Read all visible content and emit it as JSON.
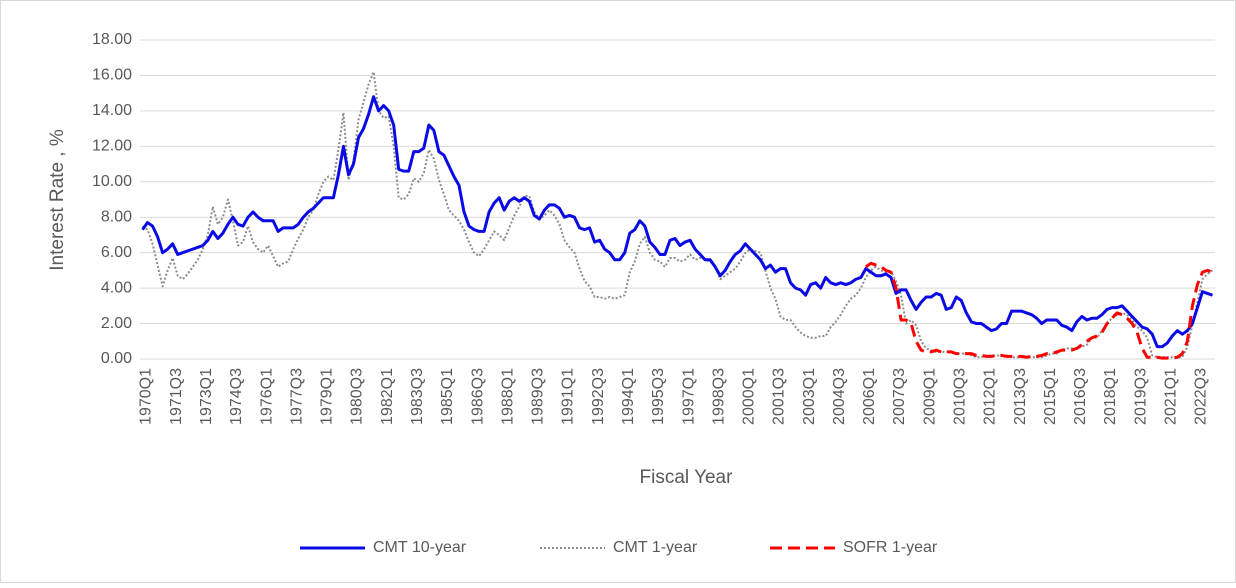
{
  "chart_data": {
    "type": "line",
    "x_label": "Fiscal Year",
    "y_label": "Interest Rate , %",
    "ylim": [
      0,
      18
    ],
    "yticks": [
      {
        "value": 0,
        "label": "0.00"
      },
      {
        "value": 2,
        "label": "2.00"
      },
      {
        "value": 4,
        "label": "4.00"
      },
      {
        "value": 6,
        "label": "6.00"
      },
      {
        "value": 8,
        "label": "8.00"
      },
      {
        "value": 10,
        "label": "10.00"
      },
      {
        "value": 12,
        "label": "12.00"
      },
      {
        "value": 14,
        "label": "14.00"
      },
      {
        "value": 16,
        "label": "16.00"
      },
      {
        "value": 18,
        "label": "18.00"
      }
    ],
    "grid": true,
    "legend": "bottom",
    "categories": [
      "1970Q1",
      null,
      null,
      null,
      null,
      null,
      "1971Q3",
      null,
      null,
      null,
      null,
      null,
      "1973Q1",
      null,
      null,
      null,
      null,
      null,
      "1974Q3",
      null,
      null,
      null,
      null,
      null,
      "1976Q1",
      null,
      null,
      null,
      null,
      null,
      "1977Q3",
      null,
      null,
      null,
      null,
      null,
      "1979Q1",
      null,
      null,
      null,
      null,
      null,
      "1980Q3",
      null,
      null,
      null,
      null,
      null,
      "1982Q1",
      null,
      null,
      null,
      null,
      null,
      "1983Q3",
      null,
      null,
      null,
      null,
      null,
      "1985Q1",
      null,
      null,
      null,
      null,
      null,
      "1986Q3",
      null,
      null,
      null,
      null,
      null,
      "1988Q1",
      null,
      null,
      null,
      null,
      null,
      "1989Q3",
      null,
      null,
      null,
      null,
      null,
      "1991Q1",
      null,
      null,
      null,
      null,
      null,
      "1992Q3",
      null,
      null,
      null,
      null,
      null,
      "1994Q1",
      null,
      null,
      null,
      null,
      null,
      "1995Q3",
      null,
      null,
      null,
      null,
      null,
      "1997Q1",
      null,
      null,
      null,
      null,
      null,
      "1998Q3",
      null,
      null,
      null,
      null,
      null,
      "2000Q1",
      null,
      null,
      null,
      null,
      null,
      "2001Q3",
      null,
      null,
      null,
      null,
      null,
      "2003Q1",
      null,
      null,
      null,
      null,
      null,
      "2004Q3",
      null,
      null,
      null,
      null,
      null,
      "2006Q1",
      null,
      null,
      null,
      null,
      null,
      "2007Q3",
      null,
      null,
      null,
      null,
      null,
      "2009Q1",
      null,
      null,
      null,
      null,
      null,
      "2010Q3",
      null,
      null,
      null,
      null,
      null,
      "2012Q1",
      null,
      null,
      null,
      null,
      null,
      "2013Q3",
      null,
      null,
      null,
      null,
      null,
      "2015Q1",
      null,
      null,
      null,
      null,
      null,
      "2016Q3",
      null,
      null,
      null,
      null,
      null,
      "2018Q1",
      null,
      null,
      null,
      null,
      null,
      "2019Q3",
      null,
      null,
      null,
      null,
      null,
      "2021Q1",
      null,
      null,
      null,
      null,
      null,
      "2022Q3",
      null,
      null,
      null
    ],
    "series": [
      {
        "name": "CMT 10-year",
        "color": "#0a0ae6",
        "style": "solid",
        "values": [
          7.3,
          7.7,
          7.5,
          6.9,
          6.0,
          6.2,
          6.5,
          5.9,
          6.0,
          6.1,
          6.2,
          6.3,
          6.4,
          6.7,
          7.2,
          6.8,
          7.1,
          7.6,
          8.0,
          7.6,
          7.5,
          8.0,
          8.3,
          8.0,
          7.8,
          7.8,
          7.8,
          7.2,
          7.4,
          7.4,
          7.4,
          7.6,
          8.0,
          8.3,
          8.5,
          8.8,
          9.1,
          9.1,
          9.1,
          10.4,
          12.0,
          10.4,
          11.0,
          12.5,
          13.0,
          13.8,
          14.8,
          14.0,
          14.3,
          14.0,
          13.2,
          10.7,
          10.6,
          10.6,
          11.7,
          11.7,
          11.9,
          13.2,
          12.9,
          11.7,
          11.5,
          10.9,
          10.3,
          9.8,
          8.3,
          7.5,
          7.3,
          7.2,
          7.2,
          8.3,
          8.8,
          9.1,
          8.4,
          8.9,
          9.1,
          8.9,
          9.1,
          8.9,
          8.1,
          7.9,
          8.4,
          8.7,
          8.7,
          8.5,
          8.0,
          8.1,
          8.0,
          7.4,
          7.3,
          7.4,
          6.6,
          6.7,
          6.2,
          6.0,
          5.6,
          5.6,
          6.0,
          7.1,
          7.3,
          7.8,
          7.5,
          6.6,
          6.3,
          5.9,
          5.9,
          6.7,
          6.8,
          6.4,
          6.6,
          6.7,
          6.2,
          5.9,
          5.6,
          5.6,
          5.2,
          4.7,
          5.0,
          5.5,
          5.9,
          6.1,
          6.5,
          6.2,
          5.9,
          5.6,
          5.1,
          5.3,
          4.9,
          5.1,
          5.1,
          4.3,
          4.0,
          3.9,
          3.6,
          4.2,
          4.3,
          4.0,
          4.6,
          4.3,
          4.2,
          4.3,
          4.2,
          4.3,
          4.5,
          4.6,
          5.1,
          4.9,
          4.7,
          4.7,
          4.8,
          4.6,
          3.7,
          3.9,
          3.9,
          3.3,
          2.8,
          3.2,
          3.5,
          3.5,
          3.7,
          3.6,
          2.8,
          2.9,
          3.5,
          3.3,
          2.6,
          2.1,
          2.0,
          2.0,
          1.8,
          1.6,
          1.7,
          2.0,
          2.0,
          2.7,
          2.7,
          2.7,
          2.6,
          2.5,
          2.3,
          2.0,
          2.2,
          2.2,
          2.2,
          1.9,
          1.8,
          1.6,
          2.1,
          2.4,
          2.2,
          2.3,
          2.3,
          2.5,
          2.8,
          2.9,
          2.9,
          3.0,
          2.7,
          2.4,
          2.1,
          1.8,
          1.7,
          1.4,
          0.7,
          0.7,
          0.9,
          1.3,
          1.6,
          1.4,
          1.6,
          2.0,
          2.9,
          3.8,
          3.7,
          3.6
        ]
      },
      {
        "name": "CMT 1-year",
        "color": "#8c8c8c",
        "style": "dotted",
        "values": [
          7.5,
          7.3,
          6.5,
          5.3,
          4.1,
          5.0,
          5.7,
          4.7,
          4.5,
          4.8,
          5.2,
          5.6,
          6.2,
          7.0,
          8.6,
          7.6,
          8.0,
          9.0,
          7.8,
          6.4,
          6.6,
          7.5,
          6.6,
          6.2,
          6.0,
          6.4,
          5.8,
          5.2,
          5.4,
          5.5,
          6.2,
          6.8,
          7.3,
          8.0,
          8.4,
          9.3,
          10.0,
          10.3,
          10.1,
          11.8,
          13.9,
          10.1,
          11.2,
          13.5,
          14.5,
          15.5,
          16.2,
          14.0,
          13.6,
          13.7,
          12.0,
          9.1,
          9.0,
          9.3,
          10.2,
          10.0,
          10.5,
          11.8,
          11.3,
          10.1,
          9.3,
          8.4,
          8.1,
          7.8,
          7.3,
          6.6,
          6.0,
          5.8,
          6.2,
          6.7,
          7.2,
          7.0,
          6.7,
          7.4,
          8.1,
          8.6,
          9.2,
          9.2,
          8.3,
          7.9,
          8.1,
          8.4,
          8.1,
          7.6,
          6.7,
          6.3,
          6.0,
          5.1,
          4.4,
          4.1,
          3.5,
          3.5,
          3.4,
          3.5,
          3.4,
          3.5,
          3.6,
          4.9,
          5.5,
          6.5,
          6.9,
          6.0,
          5.6,
          5.5,
          5.2,
          5.7,
          5.7,
          5.5,
          5.6,
          5.9,
          5.6,
          5.7,
          5.6,
          5.5,
          5.2,
          4.5,
          4.7,
          4.9,
          5.1,
          5.5,
          6.0,
          6.2,
          6.1,
          6.0,
          5.0,
          4.0,
          3.4,
          2.4,
          2.2,
          2.2,
          1.8,
          1.5,
          1.3,
          1.2,
          1.2,
          1.3,
          1.3,
          1.8,
          2.1,
          2.5,
          3.0,
          3.4,
          3.6,
          4.0,
          4.6,
          5.0,
          5.2,
          5.0,
          4.9,
          4.9,
          4.4,
          3.6,
          2.0,
          2.2,
          1.9,
          1.0,
          0.6,
          0.5,
          0.4,
          0.4,
          0.4,
          0.4,
          0.3,
          0.3,
          0.3,
          0.2,
          0.1,
          0.1,
          0.2,
          0.2,
          0.2,
          0.2,
          0.2,
          0.1,
          0.1,
          0.1,
          0.1,
          0.1,
          0.1,
          0.1,
          0.2,
          0.3,
          0.3,
          0.5,
          0.6,
          0.6,
          0.6,
          0.7,
          0.8,
          1.2,
          1.2,
          1.6,
          2.0,
          2.3,
          2.5,
          2.6,
          2.5,
          2.2,
          1.8,
          1.6,
          1.2,
          0.2,
          0.1,
          0.1,
          0.1,
          0.1,
          0.1,
          0.1,
          0.7,
          1.9,
          3.2,
          4.5,
          4.8,
          5.0
        ]
      },
      {
        "name": "SOFR 1-year",
        "color": "#ff0000",
        "style": "dashed",
        "values": [
          null,
          null,
          null,
          null,
          null,
          null,
          null,
          null,
          null,
          null,
          null,
          null,
          null,
          null,
          null,
          null,
          null,
          null,
          null,
          null,
          null,
          null,
          null,
          null,
          null,
          null,
          null,
          null,
          null,
          null,
          null,
          null,
          null,
          null,
          null,
          null,
          null,
          null,
          null,
          null,
          null,
          null,
          null,
          null,
          null,
          null,
          null,
          null,
          null,
          null,
          null,
          null,
          null,
          null,
          null,
          null,
          null,
          null,
          null,
          null,
          null,
          null,
          null,
          null,
          null,
          null,
          null,
          null,
          null,
          null,
          null,
          null,
          null,
          null,
          null,
          null,
          null,
          null,
          null,
          null,
          null,
          null,
          null,
          null,
          null,
          null,
          null,
          null,
          null,
          null,
          null,
          null,
          null,
          null,
          null,
          null,
          null,
          null,
          null,
          null,
          null,
          null,
          null,
          null,
          null,
          null,
          null,
          null,
          null,
          null,
          null,
          null,
          null,
          null,
          null,
          null,
          null,
          null,
          null,
          null,
          null,
          null,
          null,
          null,
          null,
          null,
          null,
          null,
          null,
          null,
          null,
          null,
          null,
          null,
          null,
          null,
          null,
          null,
          null,
          null,
          null,
          null,
          null,
          null,
          5.2,
          5.4,
          5.3,
          5.2,
          5.0,
          4.9,
          4.0,
          2.2,
          2.2,
          2.0,
          1.0,
          0.5,
          0.4,
          0.4,
          0.5,
          0.4,
          0.4,
          0.4,
          0.3,
          0.3,
          0.3,
          0.3,
          0.2,
          0.2,
          0.15,
          0.15,
          0.2,
          0.2,
          0.15,
          0.15,
          0.15,
          0.15,
          0.1,
          0.15,
          0.15,
          0.2,
          0.3,
          0.3,
          0.4,
          0.5,
          0.5,
          0.5,
          0.6,
          0.8,
          1.0,
          1.2,
          1.3,
          1.5,
          2.0,
          2.3,
          2.6,
          2.5,
          2.3,
          2.0,
          1.5,
          0.6,
          0.1,
          0.1,
          0.1,
          0.05,
          0.05,
          0.05,
          0.1,
          0.3,
          1.0,
          3.0,
          4.2,
          4.9,
          5.0,
          4.9
        ]
      }
    ]
  }
}
